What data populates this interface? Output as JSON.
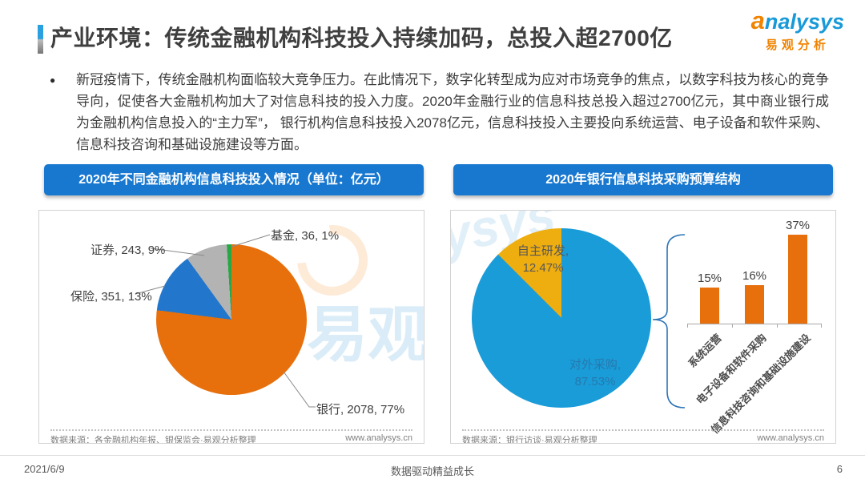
{
  "header": {
    "title": "产业环境：传统金融机构科技投入持续加码，总投入超2700亿",
    "logo": {
      "swirl": "a",
      "name": "nalysys",
      "sub": "易观分析"
    }
  },
  "intro": {
    "bullet": "●",
    "text": "新冠疫情下，传统金融机构面临较大竞争压力。在此情况下，数字化转型成为应对市场竞争的焦点，以数字科技为核心的竞争导向，促使各大金融机构加大了对信息科技的投入力度。2020年金融行业的信息科技总投入超过2700亿元，其中商业银行成为金融机构信息投入的“主力军”， 银行机构信息科技投入2078亿元，信息科技投入主要投向系统运营、电子设备和软件采购、信息科技咨询和基础设施建设等方面。"
  },
  "watermark": {
    "left": "易观",
    "right": "ysys"
  },
  "chart_data": [
    {
      "type": "pie",
      "title": "2020年不同金融机构信息科技投入情况（单位：亿元）",
      "unit": "亿元",
      "slices": [
        {
          "name": "银行",
          "value": 2078,
          "pct": 77,
          "color": "#e7700d",
          "label": "银行, 2078, 77%"
        },
        {
          "name": "保险",
          "value": 351,
          "pct": 13,
          "color": "#2277cc",
          "label": "保险, 351, 13%"
        },
        {
          "name": "证券",
          "value": 243,
          "pct": 9,
          "color": "#b3b3b3",
          "label": "证券, 243, 9%"
        },
        {
          "name": "基金",
          "value": 36,
          "pct": 1,
          "color": "#27a844",
          "label": "基金, 36, 1%"
        }
      ],
      "source": "数据来源：各金融机构年报、银保监会·易观分析整理",
      "site": "www.analysys.cn"
    },
    {
      "type": "pie",
      "title": "2020年银行信息科技采购预算结构",
      "slices": [
        {
          "name": "对外采购",
          "pct": 87.53,
          "color": "#199cd8",
          "label_line1": "对外采购,",
          "label_line2": "87.53%"
        },
        {
          "name": "自主研发",
          "pct": 12.47,
          "color": "#efae10",
          "label_line1": "自主研发,",
          "label_line2": "12.47%"
        }
      ],
      "source": "数据来源：银行访谈·易观分析整理",
      "site": "www.analysys.cn"
    },
    {
      "type": "bar",
      "categories": [
        "系统运营",
        "电子设备和软件采购",
        "信息科技咨询和基础设施建设"
      ],
      "values": [
        15,
        16,
        37
      ],
      "labels": [
        "15%",
        "16%",
        "37%"
      ],
      "bar_color": "#e7700d",
      "ylim": [
        0,
        40
      ]
    }
  ],
  "footer": {
    "date": "2021/6/9",
    "center": "数据驱动精益成长",
    "page": "6"
  }
}
